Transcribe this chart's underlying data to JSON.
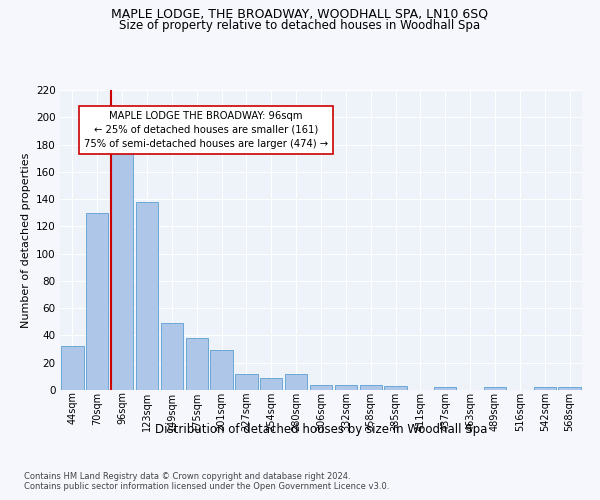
{
  "title": "MAPLE LODGE, THE BROADWAY, WOODHALL SPA, LN10 6SQ",
  "subtitle": "Size of property relative to detached houses in Woodhall Spa",
  "xlabel": "Distribution of detached houses by size in Woodhall Spa",
  "ylabel": "Number of detached properties",
  "footer_line1": "Contains HM Land Registry data © Crown copyright and database right 2024.",
  "footer_line2": "Contains public sector information licensed under the Open Government Licence v3.0.",
  "categories": [
    "44sqm",
    "70sqm",
    "96sqm",
    "123sqm",
    "149sqm",
    "175sqm",
    "201sqm",
    "227sqm",
    "254sqm",
    "280sqm",
    "306sqm",
    "332sqm",
    "358sqm",
    "385sqm",
    "411sqm",
    "437sqm",
    "463sqm",
    "489sqm",
    "516sqm",
    "542sqm",
    "568sqm"
  ],
  "bar_heights": [
    32,
    130,
    178,
    138,
    49,
    38,
    29,
    12,
    9,
    12,
    4,
    4,
    4,
    3,
    0,
    2,
    0,
    2,
    0,
    2,
    2
  ],
  "bar_color": "#aec6e8",
  "bar_edge_color": "#5a9fd4",
  "red_line_index": 2,
  "red_line_color": "#cc0000",
  "annotation_text": "MAPLE LODGE THE BROADWAY: 96sqm\n← 25% of detached houses are smaller (161)\n75% of semi-detached houses are larger (474) →",
  "annotation_box_color": "#ffffff",
  "annotation_box_edge": "#cc0000",
  "ylim": [
    0,
    220
  ],
  "yticks": [
    0,
    20,
    40,
    60,
    80,
    100,
    120,
    140,
    160,
    180,
    200,
    220
  ],
  "bg_color": "#eef2f9",
  "grid_color": "#ffffff",
  "fig_bg_color": "#f5f7fc",
  "title_fontsize": 9,
  "subtitle_fontsize": 8.5,
  "bar_width": 0.9
}
